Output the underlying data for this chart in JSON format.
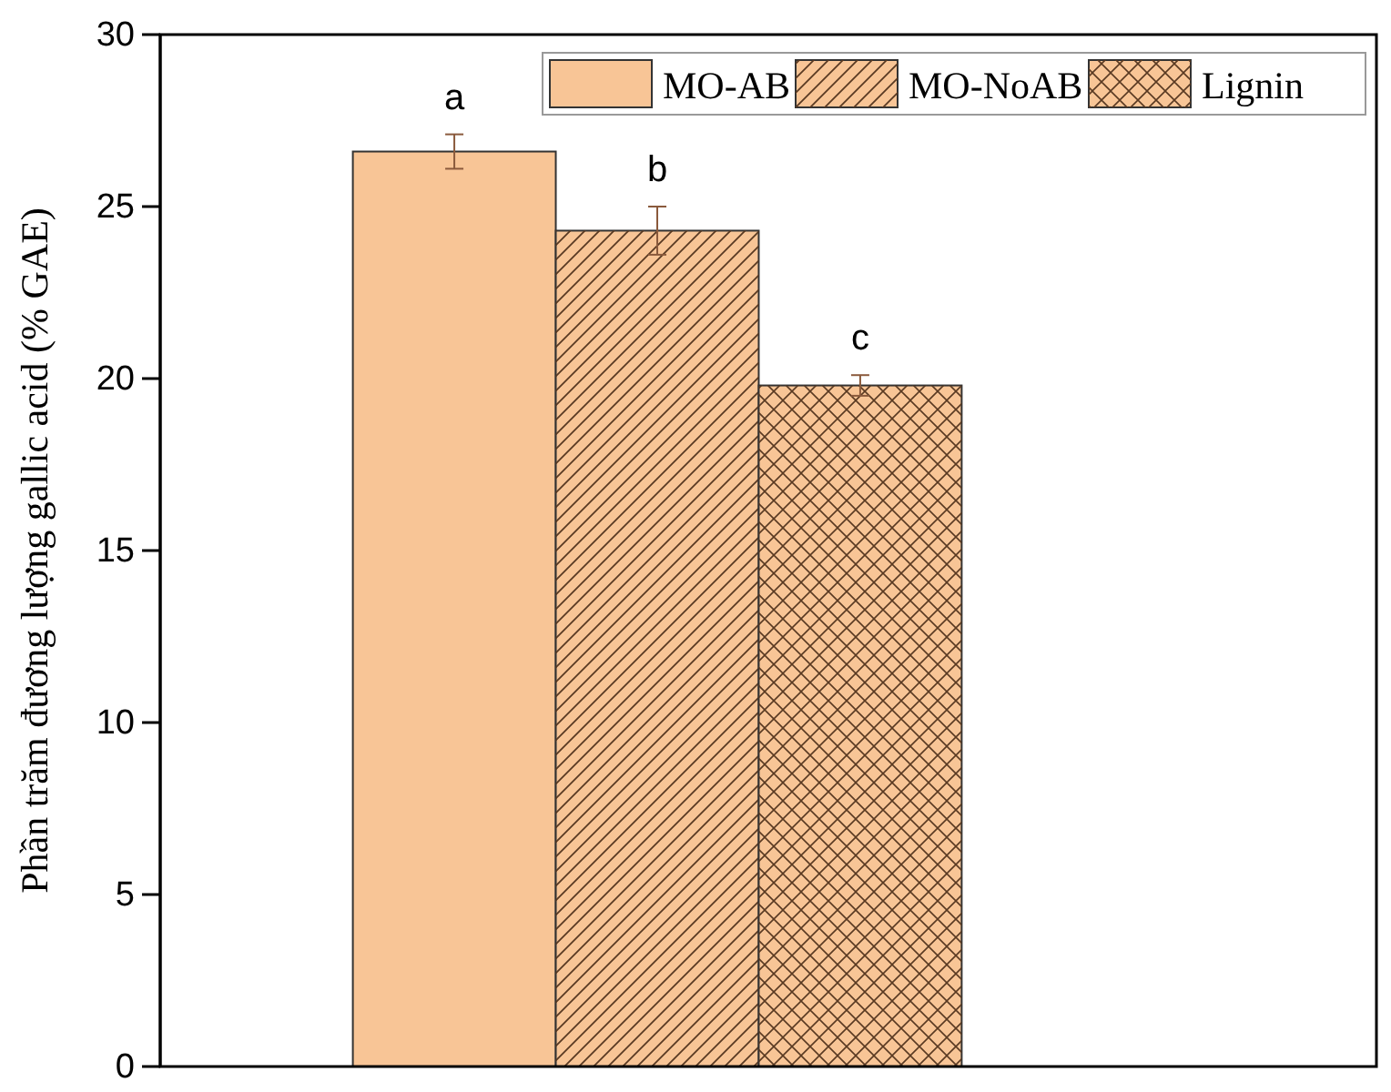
{
  "chart_data": {
    "type": "bar",
    "ylabel": "Phần trăm đương lượng gallic acid (% GAE)",
    "categories": [
      null
    ],
    "series": [
      {
        "name": "MO-AB",
        "color": "#f8c596",
        "values": [
          26.6
        ],
        "errors": [
          0.5
        ]
      },
      {
        "name": "MO-NoAB",
        "color": "#f8c596",
        "values": [
          24.3
        ],
        "errors": [
          0.7
        ]
      },
      {
        "name": "Lignin",
        "color": "#f8c596",
        "values": [
          19.8
        ],
        "errors": [
          0.3
        ]
      }
    ],
    "ylim": [
      0,
      30
    ],
    "yticks": [
      0,
      5,
      10,
      15,
      20,
      25,
      30
    ],
    "annotations": [
      "a",
      "b",
      "c"
    ],
    "legend": "top right",
    "grid": false
  }
}
